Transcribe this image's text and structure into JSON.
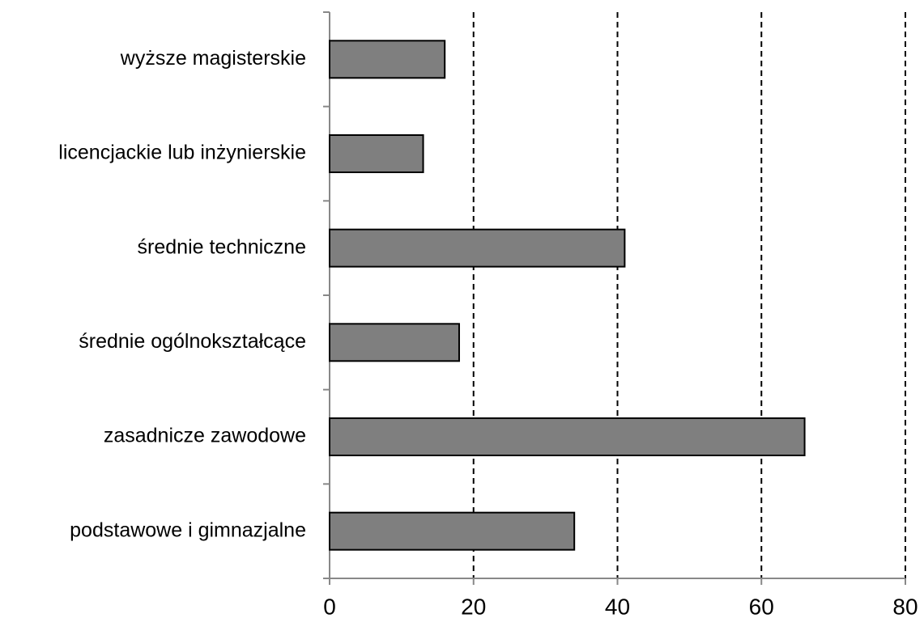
{
  "chart_data": {
    "type": "hbar",
    "categories": [
      "podstawowe i gimnazjalne",
      "zasadnicze zawodowe",
      "średnie ogólnokształcące",
      "średnie techniczne",
      "licencjackie lub inżynierskie",
      "wyższe magisterskie"
    ],
    "values": [
      34,
      66,
      18,
      41,
      13,
      16
    ],
    "color": "#7f7f7f",
    "xlim": [
      0,
      80
    ],
    "xticks": [
      0,
      20,
      40,
      60,
      80
    ],
    "grid": true
  }
}
